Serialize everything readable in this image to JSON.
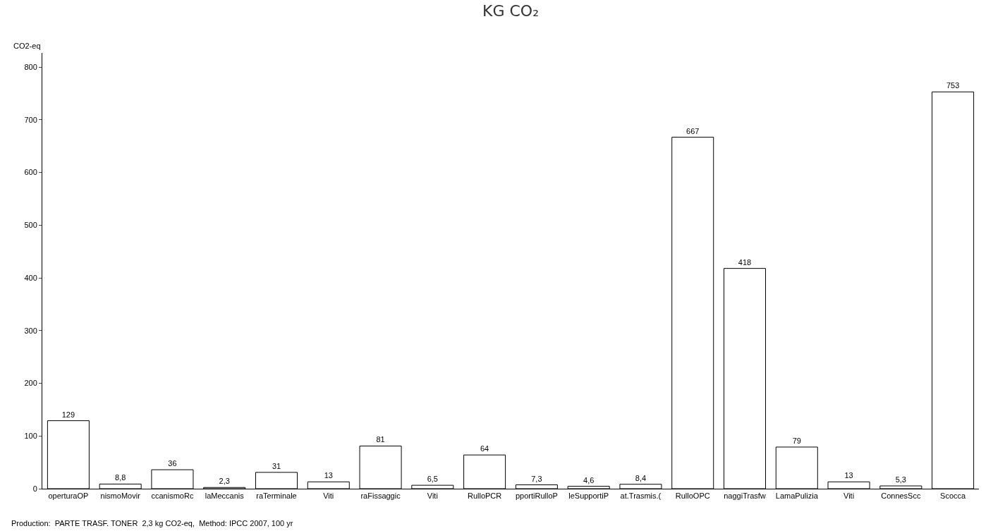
{
  "chart_data": {
    "type": "bar",
    "title": "KG CO₂",
    "ylabel": "CO2-eq",
    "categories": [
      "operturaOP",
      "nismoMovir",
      "ccanismoRc",
      "laMeccanis",
      "raTerminale",
      "Viti",
      "raFissaggic",
      "Viti",
      "RulloPCR",
      "pportiRulloP",
      "leSupportiP",
      "at.Trasmis.(",
      "RulloOPC",
      "naggiTrasfw",
      "LamaPulizia",
      "Viti",
      "ConnesScc",
      "Scocca"
    ],
    "values": [
      129,
      8.8,
      36,
      2.3,
      31,
      13,
      81,
      6.5,
      64,
      7.3,
      4.6,
      8.4,
      667,
      418,
      79,
      13,
      5.3,
      753
    ],
    "value_labels": [
      "129",
      "8,8",
      "36",
      "2,3",
      "31",
      "13",
      "81",
      "6,5",
      "64",
      "7,3",
      "4,6",
      "8,4",
      "667",
      "418",
      "79",
      "13",
      "5,3",
      "753"
    ],
    "color": "#ffffff",
    "ylim": [
      0,
      827
    ],
    "yticks": [
      0,
      100,
      200,
      300,
      400,
      500,
      600,
      700,
      800
    ],
    "legend": false,
    "annotations": [
      "Production:  PARTE TRASF. TONER  2,3 kg CO2-eq,  Method: IPCC 2007, 100 yr"
    ]
  }
}
